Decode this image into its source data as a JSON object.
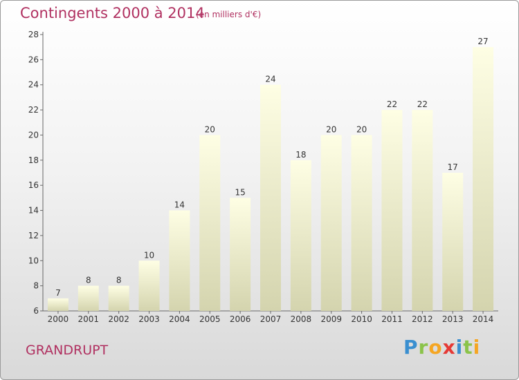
{
  "title": "Contingents 2000 à 2014",
  "subtitle": "(en milliers d'€)",
  "place": "GRANDRUPT",
  "logo": "Proxiti",
  "colors": {
    "title": "#b03060",
    "bar_top": "#fdfde0",
    "bar_bottom": "#d6d6b0"
  },
  "chart_data": {
    "type": "bar",
    "categories": [
      "2000",
      "2001",
      "2002",
      "2003",
      "2004",
      "2005",
      "2006",
      "2007",
      "2008",
      "2009",
      "2010",
      "2011",
      "2012",
      "2013",
      "2014"
    ],
    "values": [
      7,
      8,
      8,
      10,
      14,
      20,
      15,
      24,
      18,
      20,
      20,
      22,
      22,
      17,
      27
    ],
    "yticks": [
      6,
      8,
      10,
      12,
      14,
      16,
      18,
      20,
      22,
      24,
      26,
      28
    ],
    "ylim": [
      6,
      28
    ],
    "grid": false,
    "legend": "none"
  }
}
